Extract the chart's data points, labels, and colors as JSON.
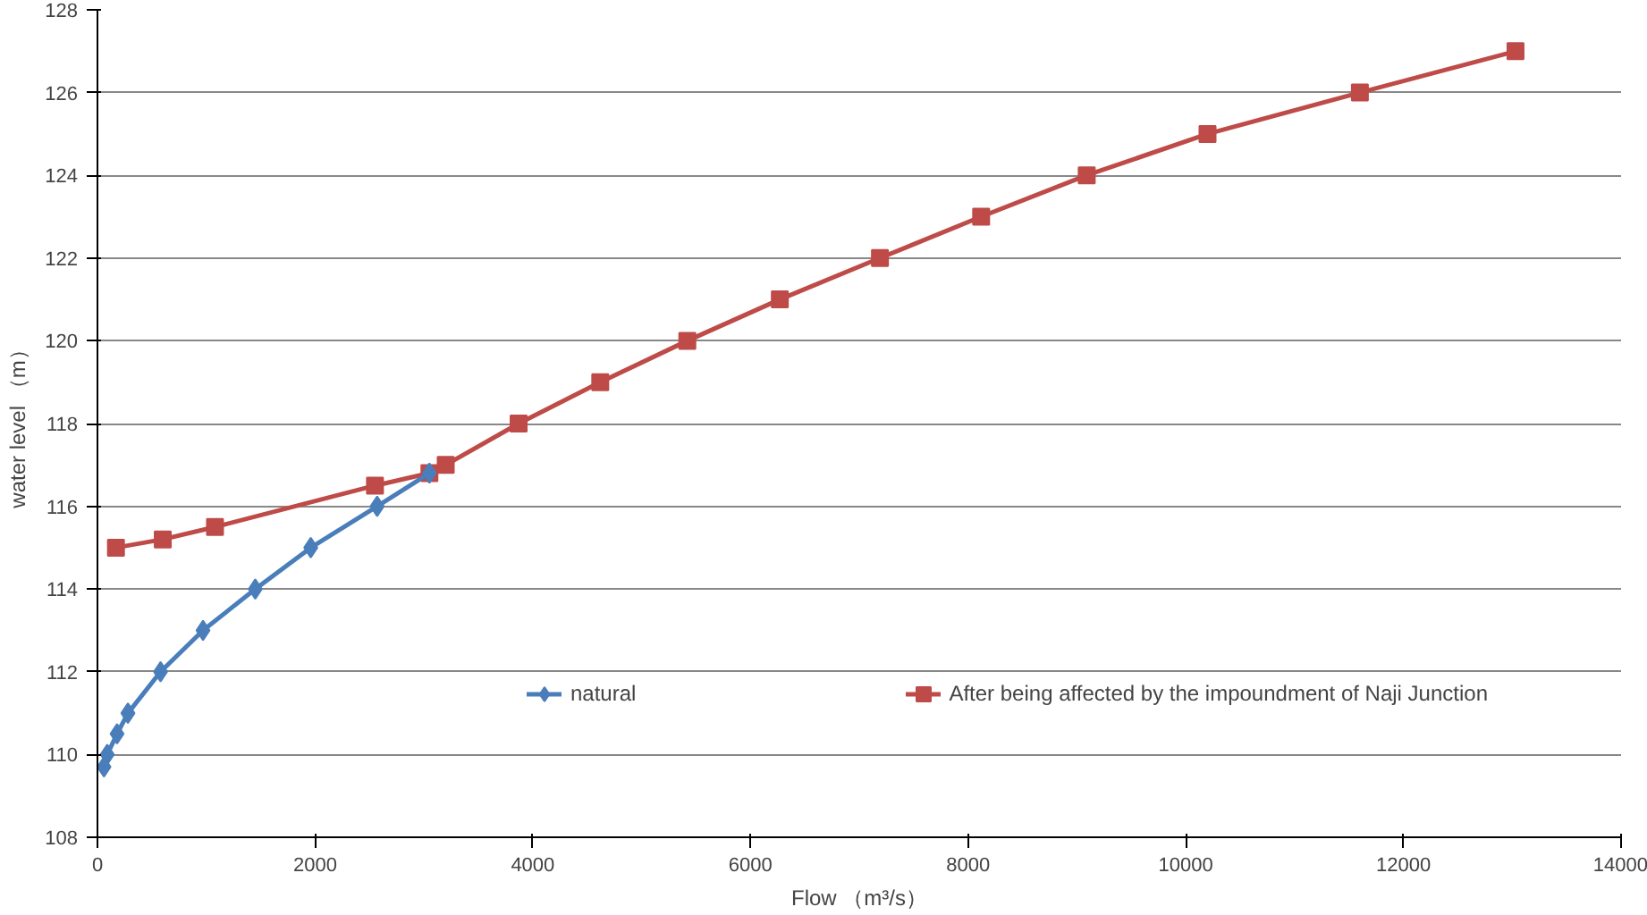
{
  "chart_data": {
    "type": "line",
    "xlabel": "Flow （m³/s）",
    "ylabel": "water level （m）",
    "xlim": [
      0,
      14000
    ],
    "xticks": [
      0,
      2000,
      4000,
      6000,
      8000,
      10000,
      12000,
      14000
    ],
    "ylim": [
      108,
      128
    ],
    "yticks": [
      108,
      110,
      112,
      114,
      116,
      118,
      120,
      122,
      124,
      126,
      128
    ],
    "grid": "y",
    "legend": "bottom",
    "series": [
      {
        "name": "natural",
        "color": "#4a7ebb",
        "marker": "diamond",
        "x": [
          60,
          90,
          180,
          280,
          580,
          970,
          1450,
          1960,
          2570,
          3050
        ],
        "values": [
          109.7,
          110,
          110.5,
          111,
          112,
          113,
          114,
          115,
          116,
          116.8
        ]
      },
      {
        "name": "After being affected by the impoundment of Naji Junction",
        "color": "#be4b48",
        "marker": "square",
        "x": [
          170,
          600,
          1080,
          2550,
          3050,
          3200,
          3870,
          4620,
          5420,
          6270,
          7190,
          8120,
          9090,
          10200,
          11600,
          13030
        ],
        "values": [
          115,
          115.2,
          115.5,
          116.5,
          116.8,
          117,
          118,
          119,
          120,
          121,
          122,
          123,
          124,
          125,
          126,
          127
        ]
      }
    ]
  }
}
